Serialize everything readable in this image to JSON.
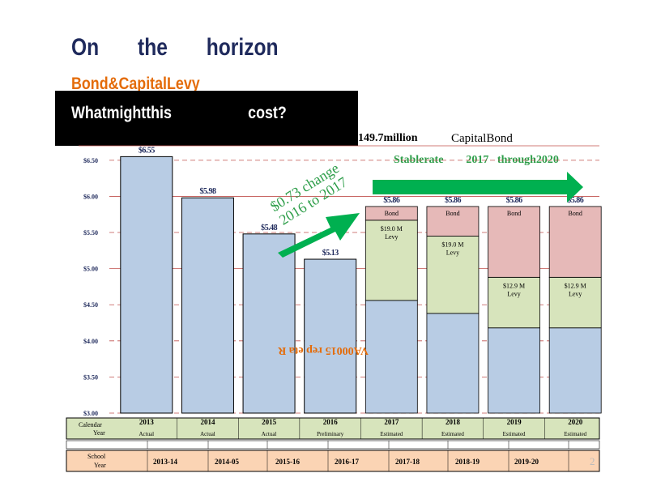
{
  "slide": {
    "title": "On       the       horizon",
    "subtitle": "Bond&CapitalLevy",
    "question": "Whatmightthis                   cost?",
    "amount": "149.7million",
    "bond_title": "CapitalBond",
    "stable_note": "Stablerate        2017   through2020",
    "change_note_line1": "$0.73 change",
    "change_note_line2": "2016 to 2017",
    "rotated_label": "VA00015 rep eta R",
    "page_number": "2"
  },
  "colors": {
    "base_bar": "#b8cce4",
    "levy": "#d7e4bc",
    "bond": "#e6b9b8",
    "arrow": "#00b050",
    "gridline": "#c0504d",
    "calendar_row": "#d7e4bc",
    "school_row": "#fbd4b4",
    "title": "#1f2a5c",
    "subtitle": "#e46c0a"
  },
  "chart_data": {
    "type": "bar",
    "categories": [
      "2013",
      "2014",
      "2015",
      "2016",
      "2017",
      "2018",
      "2019",
      "2020"
    ],
    "values": [
      6.55,
      5.98,
      5.48,
      5.13,
      5.86,
      5.86,
      5.86,
      5.86
    ],
    "value_labels": [
      "$6.55",
      "$5.98",
      "$5.48",
      "$5.13",
      "$5.86",
      "$5.86",
      "$5.86",
      "$5.86"
    ],
    "stacks": [
      null,
      null,
      null,
      null,
      {
        "base": 4.56,
        "levy_top": 5.67,
        "bond_top": 5.86,
        "levy_label_1": "$19.0     M",
        "levy_label_2": "Levy",
        "bond_label": "Bond"
      },
      {
        "base": 4.38,
        "levy_top": 5.45,
        "bond_top": 5.86,
        "levy_label_1": "$19.0     M",
        "levy_label_2": "Levy",
        "bond_label": "Bond"
      },
      {
        "base": 4.18,
        "levy_top": 4.88,
        "bond_top": 5.86,
        "levy_label_1": "$12.9      M",
        "levy_label_2": "Levy",
        "bond_label": "Bond"
      },
      {
        "base": 4.18,
        "levy_top": 4.88,
        "bond_top": 5.86,
        "levy_label_1": "$12.9      M",
        "levy_label_2": "Levy",
        "bond_label": "Bond"
      }
    ],
    "ylim": [
      3.0,
      6.7
    ],
    "yticks": [
      3.0,
      3.5,
      4.0,
      4.5,
      5.0,
      5.5,
      6.0,
      6.5
    ],
    "ytick_labels": [
      "$3.00",
      "$3.50",
      "$4.00",
      "$4.50",
      "$5.00",
      "$5.50",
      "$6.00",
      "$6.50"
    ],
    "calendar_header": "Calendar\nYear",
    "calendar_years": [
      "2013",
      "2014",
      "2015",
      "2016",
      "2017",
      "2018",
      "2019",
      "2020"
    ],
    "calendar_status": [
      "Actual",
      "Actual",
      "Actual",
      "Preliminary",
      "Estimated",
      "Estimated",
      "Estimated",
      "Estimated"
    ],
    "school_header": "School\nYear",
    "school_years": [
      "2013-14",
      "2014-05",
      "2015-16",
      "2016-17",
      "2017-18",
      "2018-19",
      "2019-20"
    ]
  }
}
